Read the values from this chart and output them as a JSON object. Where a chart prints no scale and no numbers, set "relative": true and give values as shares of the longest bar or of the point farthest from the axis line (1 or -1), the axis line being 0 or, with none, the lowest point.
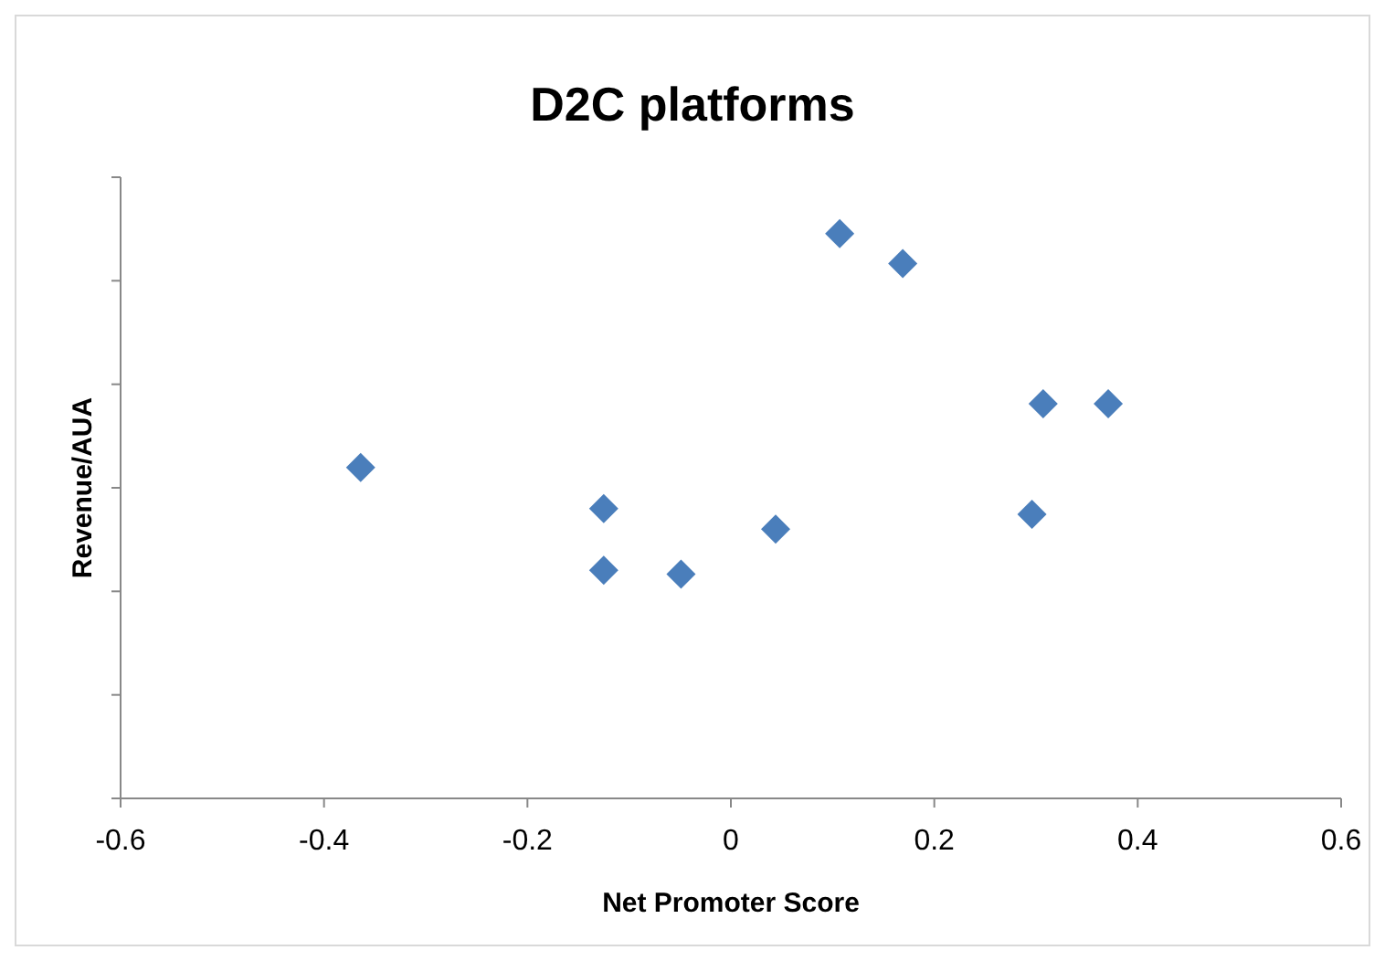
{
  "chart_data": {
    "type": "scatter",
    "title": "D2C platforms",
    "xlabel": "Net Promoter Score",
    "ylabel": "Revenue/AUA",
    "relative": true,
    "marker": "diamond",
    "grid": false,
    "x": [
      -0.364,
      -0.125,
      -0.125,
      -0.049,
      0.044,
      0.107,
      0.169,
      0.296,
      0.307,
      0.371
    ],
    "xlim": [
      -0.6,
      0.6
    ],
    "xticks": [
      -0.6,
      -0.4,
      -0.2,
      0,
      0.2,
      0.4,
      0.6
    ],
    "series": [
      {
        "color": "#4a7ebb",
        "values": [
          0.586,
          0.513,
          0.404,
          0.397,
          0.477,
          1,
          0.947,
          0.503,
          0.699,
          0.699
        ]
      }
    ]
  }
}
